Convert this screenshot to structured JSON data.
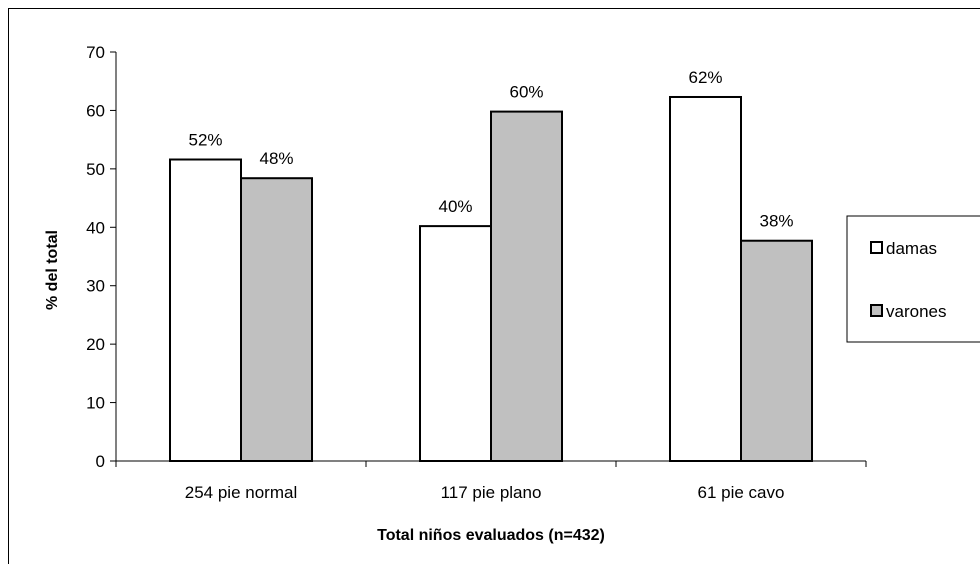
{
  "chart_data": {
    "type": "bar",
    "title": "",
    "xlabel": "Total niños evaluados (n=432)",
    "ylabel": "% del  total",
    "ylim": [
      0,
      70
    ],
    "yticks": [
      0,
      10,
      20,
      30,
      40,
      50,
      60,
      70
    ],
    "categories": [
      "254 pie normal",
      "117 pie  plano",
      "61 pie cavo"
    ],
    "series": [
      {
        "name": "damas",
        "values": [
          51.6,
          40.2,
          62.3
        ],
        "labels": [
          "52%",
          "40%",
          "62%"
        ],
        "color": "#ffffff"
      },
      {
        "name": "varones",
        "values": [
          48.4,
          59.8,
          37.7
        ],
        "labels": [
          "48%",
          "60%",
          "38%"
        ],
        "color": "#c0c0c0"
      }
    ],
    "grid": false,
    "legend_position": "right"
  }
}
